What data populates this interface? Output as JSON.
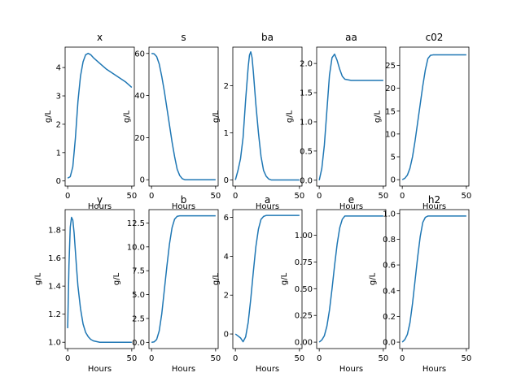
{
  "chart_data": [
    {
      "type": "line",
      "title": "x",
      "xlabel": "Hours",
      "ylabel": "g/L",
      "xlim": [
        -2,
        52
      ],
      "ylim": [
        -0.18,
        4.72
      ],
      "xticks": [
        0,
        50
      ],
      "yticks": [
        0,
        1,
        2,
        3,
        4
      ],
      "series": [
        {
          "color": "#1f77b4",
          "x": [
            0,
            2,
            4,
            6,
            8,
            10,
            12,
            14,
            16,
            18,
            20,
            25,
            30,
            35,
            40,
            45,
            50
          ],
          "y": [
            0.1,
            0.15,
            0.5,
            1.5,
            2.8,
            3.7,
            4.2,
            4.45,
            4.5,
            4.45,
            4.35,
            4.15,
            3.95,
            3.8,
            3.65,
            3.5,
            3.3
          ]
        }
      ]
    },
    {
      "type": "line",
      "title": "s",
      "xlabel": "Hours",
      "ylabel": "g/L",
      "xlim": [
        -2,
        52
      ],
      "ylim": [
        -3,
        63
      ],
      "xticks": [
        0,
        50
      ],
      "yticks": [
        0,
        20,
        40,
        60
      ],
      "series": [
        {
          "color": "#1f77b4",
          "x": [
            0,
            2,
            4,
            6,
            8,
            10,
            12,
            14,
            16,
            18,
            20,
            22,
            24,
            26,
            30,
            40,
            50
          ],
          "y": [
            60,
            59.8,
            58.5,
            55,
            49,
            42,
            34,
            26,
            18,
            11,
            5,
            2,
            0.5,
            0,
            0,
            0,
            0
          ]
        }
      ]
    },
    {
      "type": "line",
      "title": "ba",
      "xlabel": "Hours",
      "ylabel": "g/L",
      "xlim": [
        -2,
        52
      ],
      "ylim": [
        -0.13,
        2.82
      ],
      "xticks": [
        0,
        50
      ],
      "yticks": [
        0,
        1,
        2
      ],
      "series": [
        {
          "color": "#1f77b4",
          "x": [
            0,
            2,
            4,
            6,
            8,
            10,
            11,
            12,
            13,
            14,
            16,
            18,
            20,
            22,
            24,
            26,
            28,
            30,
            40,
            50
          ],
          "y": [
            0,
            0.2,
            0.45,
            0.9,
            1.7,
            2.4,
            2.65,
            2.72,
            2.6,
            2.3,
            1.6,
            1.0,
            0.5,
            0.2,
            0.08,
            0.02,
            0,
            0,
            0,
            0
          ]
        }
      ]
    },
    {
      "type": "line",
      "title": "aa",
      "xlabel": "Hours",
      "ylabel": "g/L",
      "xlim": [
        -2,
        52
      ],
      "ylim": [
        -0.1,
        2.28
      ],
      "xticks": [
        0,
        50
      ],
      "yticks": [
        0.0,
        0.5,
        1.0,
        1.5,
        2.0
      ],
      "series": [
        {
          "color": "#1f77b4",
          "x": [
            0,
            2,
            4,
            6,
            8,
            10,
            12,
            14,
            16,
            18,
            20,
            25,
            30,
            40,
            50
          ],
          "y": [
            0,
            0.2,
            0.6,
            1.2,
            1.8,
            2.1,
            2.16,
            2.05,
            1.9,
            1.78,
            1.73,
            1.71,
            1.71,
            1.71,
            1.71
          ]
        }
      ]
    },
    {
      "type": "line",
      "title": "c02",
      "xlabel": "Hours",
      "ylabel": "g/L",
      "xlim": [
        -2,
        52
      ],
      "ylim": [
        -1.4,
        29
      ],
      "xticks": [
        0,
        50
      ],
      "yticks": [
        0,
        5,
        10,
        15,
        20,
        25
      ],
      "series": [
        {
          "color": "#1f77b4",
          "x": [
            0,
            2,
            4,
            6,
            8,
            10,
            12,
            14,
            16,
            18,
            20,
            22,
            24,
            30,
            40,
            50
          ],
          "y": [
            0,
            0.3,
            1,
            2.5,
            5,
            8.5,
            12.5,
            16.5,
            20.5,
            24,
            26.5,
            27.2,
            27.3,
            27.3,
            27.3,
            27.3
          ]
        }
      ]
    },
    {
      "type": "line",
      "title": "y",
      "xlabel": "Hours",
      "ylabel": "g/L",
      "xlim": [
        -2,
        52
      ],
      "ylim": [
        0.955,
        1.945
      ],
      "xticks": [
        0,
        50
      ],
      "yticks": [
        1.0,
        1.2,
        1.4,
        1.6,
        1.8
      ],
      "series": [
        {
          "color": "#1f77b4",
          "x": [
            0,
            1,
            2,
            3,
            4,
            5,
            6,
            7,
            8,
            10,
            12,
            14,
            16,
            18,
            20,
            25,
            30,
            40,
            50
          ],
          "y": [
            1.1,
            1.55,
            1.82,
            1.89,
            1.87,
            1.78,
            1.65,
            1.52,
            1.4,
            1.24,
            1.13,
            1.07,
            1.04,
            1.02,
            1.01,
            1.0,
            1.0,
            1.0,
            1.0
          ]
        }
      ]
    },
    {
      "type": "line",
      "title": "b",
      "xlabel": "Hours",
      "ylabel": "g/L",
      "xlim": [
        -2,
        52
      ],
      "ylim": [
        -0.65,
        13.9
      ],
      "xticks": [
        0,
        50
      ],
      "yticks": [
        0.0,
        2.5,
        5.0,
        7.5,
        10.0,
        12.5
      ],
      "series": [
        {
          "color": "#1f77b4",
          "x": [
            0,
            2,
            4,
            6,
            8,
            10,
            12,
            14,
            16,
            18,
            20,
            22,
            24,
            30,
            40,
            50
          ],
          "y": [
            0,
            0.05,
            0.3,
            1.2,
            3,
            5.5,
            8,
            10.3,
            12,
            12.9,
            13.2,
            13.25,
            13.25,
            13.25,
            13.25,
            13.25
          ]
        }
      ]
    },
    {
      "type": "line",
      "title": "a",
      "xlabel": "Hours",
      "ylabel": "g/L",
      "xlim": [
        -2,
        52
      ],
      "ylim": [
        -0.75,
        6.4
      ],
      "xticks": [
        0,
        50
      ],
      "yticks": [
        0,
        2,
        4,
        6
      ],
      "series": [
        {
          "color": "#1f77b4",
          "x": [
            0,
            2,
            4,
            6,
            8,
            10,
            12,
            14,
            16,
            18,
            20,
            22,
            24,
            26,
            30,
            40,
            50
          ],
          "y": [
            0,
            -0.1,
            -0.2,
            -0.4,
            -0.15,
            0.6,
            1.8,
            3.2,
            4.5,
            5.4,
            5.9,
            6.05,
            6.1,
            6.1,
            6.1,
            6.1,
            6.1
          ]
        }
      ]
    },
    {
      "type": "line",
      "title": "e",
      "xlabel": "Hours",
      "ylabel": "g/L",
      "xlim": [
        -2,
        52
      ],
      "ylim": [
        -0.06,
        1.24
      ],
      "xticks": [
        0,
        50
      ],
      "yticks": [
        0.0,
        0.25,
        0.5,
        0.75,
        1.0
      ],
      "series": [
        {
          "color": "#1f77b4",
          "x": [
            0,
            2,
            4,
            6,
            8,
            10,
            12,
            14,
            16,
            18,
            20,
            22,
            24,
            30,
            40,
            50
          ],
          "y": [
            0,
            0.02,
            0.06,
            0.15,
            0.3,
            0.5,
            0.72,
            0.92,
            1.07,
            1.15,
            1.18,
            1.18,
            1.18,
            1.18,
            1.18,
            1.18
          ]
        }
      ]
    },
    {
      "type": "line",
      "title": "h2",
      "xlabel": "Hours",
      "ylabel": "g/L",
      "xlim": [
        -2,
        52
      ],
      "ylim": [
        -0.05,
        1.03
      ],
      "xticks": [
        0,
        50
      ],
      "yticks": [
        0.0,
        0.2,
        0.4,
        0.6,
        0.8,
        1.0
      ],
      "series": [
        {
          "color": "#1f77b4",
          "x": [
            0,
            2,
            4,
            6,
            8,
            10,
            12,
            14,
            16,
            18,
            20,
            22,
            24,
            30,
            40,
            50
          ],
          "y": [
            0,
            0.02,
            0.06,
            0.15,
            0.3,
            0.48,
            0.66,
            0.82,
            0.93,
            0.97,
            0.98,
            0.98,
            0.98,
            0.98,
            0.98,
            0.98
          ]
        }
      ]
    }
  ]
}
